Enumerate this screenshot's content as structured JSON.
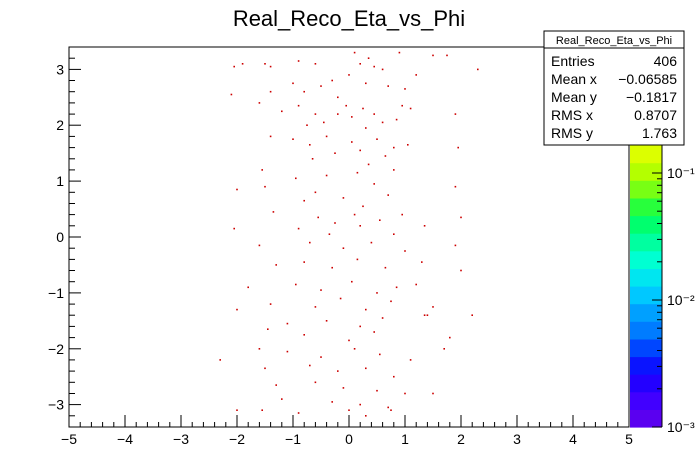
{
  "chart_data": {
    "type": "scatter",
    "title": "Real_Reco_Eta_vs_Phi",
    "xlim": [
      -5,
      5
    ],
    "ylim": [
      -3.4,
      3.4
    ],
    "xticks": [
      "−5",
      "−4",
      "−3",
      "−2",
      "−1",
      "0",
      "1",
      "2",
      "3",
      "4",
      "5"
    ],
    "yticks": [
      "−3",
      "−2",
      "−1",
      "0",
      "1",
      "2",
      "3"
    ],
    "grid": false,
    "marker_color": "#cc0000",
    "points": [
      [
        -2.05,
        3.05
      ],
      [
        -1.9,
        3.1
      ],
      [
        -1.5,
        3.1
      ],
      [
        -1.4,
        3.05
      ],
      [
        -0.9,
        3.15
      ],
      [
        -0.6,
        3.1
      ],
      [
        0.1,
        3.3
      ],
      [
        0.2,
        3.1
      ],
      [
        0.35,
        3.2
      ],
      [
        0.6,
        3.0
      ],
      [
        0.9,
        3.3
      ],
      [
        1.5,
        3.25
      ],
      [
        1.75,
        3.25
      ],
      [
        2.3,
        3.0
      ],
      [
        0.45,
        3.05
      ],
      [
        -2.1,
        2.55
      ],
      [
        -1.4,
        2.6
      ],
      [
        -1.0,
        2.75
      ],
      [
        -0.8,
        2.6
      ],
      [
        -0.5,
        2.7
      ],
      [
        -0.3,
        2.8
      ],
      [
        0.0,
        2.9
      ],
      [
        0.3,
        2.75
      ],
      [
        0.7,
        2.7
      ],
      [
        1.0,
        2.65
      ],
      [
        1.2,
        2.9
      ],
      [
        -0.2,
        2.5
      ],
      [
        -1.6,
        2.4
      ],
      [
        -1.2,
        2.25
      ],
      [
        -0.9,
        2.35
      ],
      [
        -0.6,
        2.2
      ],
      [
        -0.45,
        2.05
      ],
      [
        -0.2,
        2.2
      ],
      [
        0.05,
        2.15
      ],
      [
        0.25,
        2.3
      ],
      [
        0.45,
        2.2
      ],
      [
        0.6,
        2.05
      ],
      [
        0.85,
        2.1
      ],
      [
        1.1,
        2.3
      ],
      [
        1.9,
        2.2
      ],
      [
        -0.75,
        2.0
      ],
      [
        0.3,
        1.95
      ],
      [
        -0.05,
        2.35
      ],
      [
        0.95,
        2.35
      ],
      [
        -1.4,
        1.8
      ],
      [
        -1.0,
        1.75
      ],
      [
        -0.7,
        1.65
      ],
      [
        -0.4,
        1.8
      ],
      [
        0.05,
        1.7
      ],
      [
        0.2,
        1.55
      ],
      [
        0.5,
        1.75
      ],
      [
        0.8,
        1.6
      ],
      [
        1.05,
        1.65
      ],
      [
        1.95,
        1.6
      ],
      [
        -0.65,
        1.4
      ],
      [
        -0.25,
        1.5
      ],
      [
        0.35,
        1.3
      ],
      [
        0.65,
        1.45
      ],
      [
        -1.55,
        1.2
      ],
      [
        -0.95,
        1.05
      ],
      [
        -0.4,
        1.1
      ],
      [
        0.15,
        1.15
      ],
      [
        0.45,
        0.95
      ],
      [
        0.8,
        1.2
      ],
      [
        -2.0,
        0.85
      ],
      [
        -1.5,
        0.9
      ],
      [
        -0.6,
        0.8
      ],
      [
        -0.1,
        0.7
      ],
      [
        0.7,
        0.75
      ],
      [
        1.9,
        0.9
      ],
      [
        -0.8,
        0.65
      ],
      [
        0.25,
        0.55
      ],
      [
        -1.35,
        0.45
      ],
      [
        -0.55,
        0.35
      ],
      [
        -0.25,
        0.25
      ],
      [
        0.1,
        0.4
      ],
      [
        0.55,
        0.3
      ],
      [
        0.95,
        0.4
      ],
      [
        2.0,
        0.35
      ],
      [
        -2.05,
        0.15
      ],
      [
        -0.9,
        0.15
      ],
      [
        -0.35,
        0.05
      ],
      [
        0.2,
        0.2
      ],
      [
        0.8,
        0.05
      ],
      [
        1.35,
        0.2
      ],
      [
        -1.6,
        -0.15
      ],
      [
        -0.7,
        -0.1
      ],
      [
        -0.1,
        -0.2
      ],
      [
        0.4,
        -0.1
      ],
      [
        1.0,
        -0.25
      ],
      [
        1.9,
        -0.15
      ],
      [
        -1.3,
        -0.5
      ],
      [
        -0.8,
        -0.45
      ],
      [
        -0.3,
        -0.55
      ],
      [
        0.15,
        -0.4
      ],
      [
        0.65,
        -0.55
      ],
      [
        1.3,
        -0.45
      ],
      [
        2.0,
        -0.6
      ],
      [
        -1.8,
        -0.9
      ],
      [
        -0.95,
        -0.85
      ],
      [
        -0.5,
        -0.95
      ],
      [
        0.05,
        -0.8
      ],
      [
        0.5,
        -1.0
      ],
      [
        0.85,
        -0.9
      ],
      [
        1.2,
        -0.85
      ],
      [
        -1.4,
        -1.2
      ],
      [
        -0.6,
        -1.25
      ],
      [
        -0.15,
        -1.1
      ],
      [
        0.3,
        -1.3
      ],
      [
        0.75,
        -1.15
      ],
      [
        1.5,
        -1.25
      ],
      [
        -2.0,
        -1.3
      ],
      [
        -1.1,
        -1.55
      ],
      [
        -0.4,
        -1.5
      ],
      [
        0.2,
        -1.6
      ],
      [
        0.6,
        -1.45
      ],
      [
        1.35,
        -1.4
      ],
      [
        1.4,
        -1.4
      ],
      [
        2.2,
        -1.4
      ],
      [
        -0.8,
        -1.75
      ],
      [
        0.0,
        -1.85
      ],
      [
        0.45,
        -1.7
      ],
      [
        1.8,
        -1.8
      ],
      [
        -1.45,
        -1.65
      ],
      [
        -1.6,
        -2.0
      ],
      [
        -1.1,
        -2.05
      ],
      [
        -0.5,
        -2.15
      ],
      [
        0.1,
        -2.0
      ],
      [
        0.55,
        -2.1
      ],
      [
        1.1,
        -2.2
      ],
      [
        1.7,
        -2.0
      ],
      [
        -2.3,
        -2.2
      ],
      [
        -1.5,
        -2.35
      ],
      [
        -0.7,
        -2.3
      ],
      [
        -0.2,
        -2.4
      ],
      [
        0.3,
        -2.35
      ],
      [
        0.8,
        -2.5
      ],
      [
        -1.3,
        -2.65
      ],
      [
        -0.6,
        -2.6
      ],
      [
        -0.1,
        -2.7
      ],
      [
        0.5,
        -2.75
      ],
      [
        1.0,
        -2.8
      ],
      [
        1.5,
        -2.8
      ],
      [
        -1.2,
        -2.9
      ],
      [
        -0.3,
        -2.95
      ],
      [
        0.2,
        -3.0
      ],
      [
        0.7,
        -3.05
      ],
      [
        -1.55,
        -3.1
      ],
      [
        -0.9,
        -3.15
      ],
      [
        0.3,
        -3.2
      ],
      [
        0.75,
        -3.1
      ],
      [
        -2.0,
        -3.1
      ],
      [
        0.0,
        -3.1
      ]
    ],
    "colorbar": {
      "tick_labels": [
        "10⁻³",
        "10⁻²",
        "10⁻¹"
      ],
      "palette": [
        "#5a00f0",
        "#4100ff",
        "#2300ff",
        "#0a14ff",
        "#0046ff",
        "#007cff",
        "#00a0ff",
        "#00c8ff",
        "#00e6f0",
        "#00ffd2",
        "#00ffa0",
        "#00ff6e",
        "#28ff3c",
        "#78ff14",
        "#b4ff00",
        "#dcff00"
      ]
    }
  },
  "stats": {
    "title": "Real_Reco_Eta_vs_Phi",
    "rows": [
      {
        "label": "Entries",
        "value": "406"
      },
      {
        "label": "Mean x",
        "value": "−0.06585"
      },
      {
        "label": "Mean y",
        "value": "−0.1817"
      },
      {
        "label": "RMS x",
        "value": "0.8707"
      },
      {
        "label": "RMS y",
        "value": "1.763"
      }
    ]
  }
}
